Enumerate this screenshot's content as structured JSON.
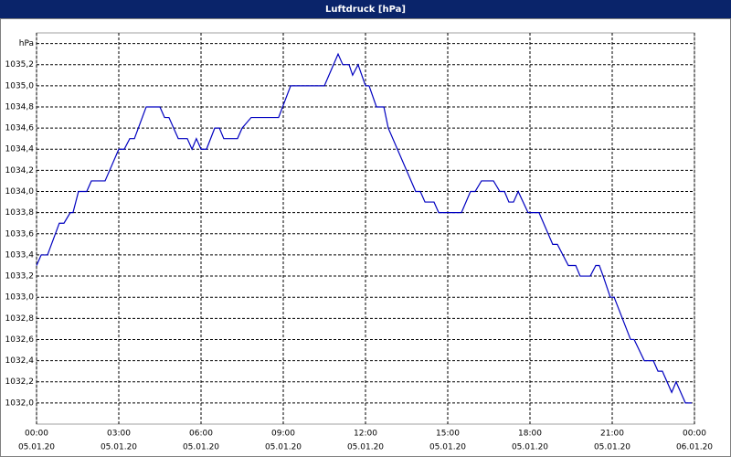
{
  "chart_data": {
    "type": "line",
    "title": "Luftdruck [hPa]",
    "x": [
      0,
      0.17,
      0.4,
      0.83,
      1,
      1.23,
      1.33,
      1.53,
      1.83,
      2,
      2.5,
      3,
      3.2,
      3.4,
      3.57,
      4,
      4.5,
      4.67,
      4.83,
      5.17,
      5.5,
      5.67,
      5.83,
      6,
      6.2,
      6.5,
      6.67,
      6.83,
      7.33,
      7.5,
      7.83,
      8.83,
      9.27,
      10.5,
      11,
      11.17,
      11.4,
      11.53,
      11.73,
      12,
      12.13,
      12.4,
      12.67,
      12.83,
      13.83,
      14,
      14.17,
      14.5,
      14.67,
      15.5,
      15.83,
      16,
      16.23,
      16.67,
      16.9,
      17.07,
      17.23,
      17.4,
      17.57,
      17.93,
      18.33,
      18.83,
      19,
      19.4,
      19.67,
      19.83,
      20.2,
      20.4,
      20.53,
      20.67,
      20.93,
      21.07,
      21.67,
      21.8,
      22.17,
      22.5,
      22.67,
      22.83,
      23.17,
      23.33,
      23.67,
      23.9
    ],
    "series": [
      {
        "name": "Luftdruck",
        "color": "#0000c0",
        "values": [
          1033.3,
          1033.4,
          1033.4,
          1033.7,
          1033.7,
          1033.8,
          1033.8,
          1034.0,
          1034.0,
          1034.1,
          1034.1,
          1034.4,
          1034.4,
          1034.5,
          1034.5,
          1034.8,
          1034.8,
          1034.7,
          1034.7,
          1034.5,
          1034.5,
          1034.4,
          1034.5,
          1034.4,
          1034.4,
          1034.6,
          1034.6,
          1034.5,
          1034.5,
          1034.6,
          1034.7,
          1034.7,
          1035.0,
          1035.0,
          1035.3,
          1035.2,
          1035.2,
          1035.1,
          1035.2,
          1035.0,
          1035.0,
          1034.8,
          1034.8,
          1034.6,
          1034.0,
          1034.0,
          1033.9,
          1033.9,
          1033.8,
          1033.8,
          1034.0,
          1034.0,
          1034.1,
          1034.1,
          1034.0,
          1034.0,
          1033.9,
          1033.9,
          1034.0,
          1033.8,
          1033.8,
          1033.5,
          1033.5,
          1033.3,
          1033.3,
          1033.2,
          1033.2,
          1033.3,
          1033.3,
          1033.2,
          1033.0,
          1033.0,
          1032.6,
          1032.6,
          1032.4,
          1032.4,
          1032.3,
          1032.3,
          1032.1,
          1032.2,
          1032.0,
          1032.0
        ]
      }
    ],
    "xlim": [
      0,
      24
    ],
    "xticks": [
      {
        "value": 0,
        "label": "00:00"
      },
      {
        "value": 3,
        "label": "03:00"
      },
      {
        "value": 6,
        "label": "06:00"
      },
      {
        "value": 9,
        "label": "09:00"
      },
      {
        "value": 12,
        "label": "12:00"
      },
      {
        "value": 15,
        "label": "15:00"
      },
      {
        "value": 18,
        "label": "18:00"
      },
      {
        "value": 21,
        "label": "21:00"
      },
      {
        "value": 24,
        "label": "00:00"
      }
    ],
    "xtick_dates": [
      "05.01.20",
      "05.01.20",
      "05.01.20",
      "05.01.20",
      "05.01.20",
      "05.01.20",
      "05.01.20",
      "05.01.20",
      "06.01.20"
    ],
    "ylim": [
      1031.8,
      1035.5
    ],
    "yticks": [
      {
        "value": 1032.0,
        "label": "1032,0"
      },
      {
        "value": 1032.2,
        "label": "1032,2"
      },
      {
        "value": 1032.4,
        "label": "1032,4"
      },
      {
        "value": 1032.6,
        "label": "1032,6"
      },
      {
        "value": 1032.8,
        "label": "1032,8"
      },
      {
        "value": 1033.0,
        "label": "1033,0"
      },
      {
        "value": 1033.2,
        "label": "1033,2"
      },
      {
        "value": 1033.4,
        "label": "1033,4"
      },
      {
        "value": 1033.6,
        "label": "1033,6"
      },
      {
        "value": 1033.8,
        "label": "1033,8"
      },
      {
        "value": 1034.0,
        "label": "1034,0"
      },
      {
        "value": 1034.2,
        "label": "1034,2"
      },
      {
        "value": 1034.4,
        "label": "1034,4"
      },
      {
        "value": 1034.6,
        "label": "1034,6"
      },
      {
        "value": 1034.8,
        "label": "1034,8"
      },
      {
        "value": 1035.0,
        "label": "1035,0"
      },
      {
        "value": 1035.2,
        "label": "1035,2"
      },
      {
        "value": 1035.4,
        "label": "hPa"
      }
    ],
    "grid": true
  }
}
